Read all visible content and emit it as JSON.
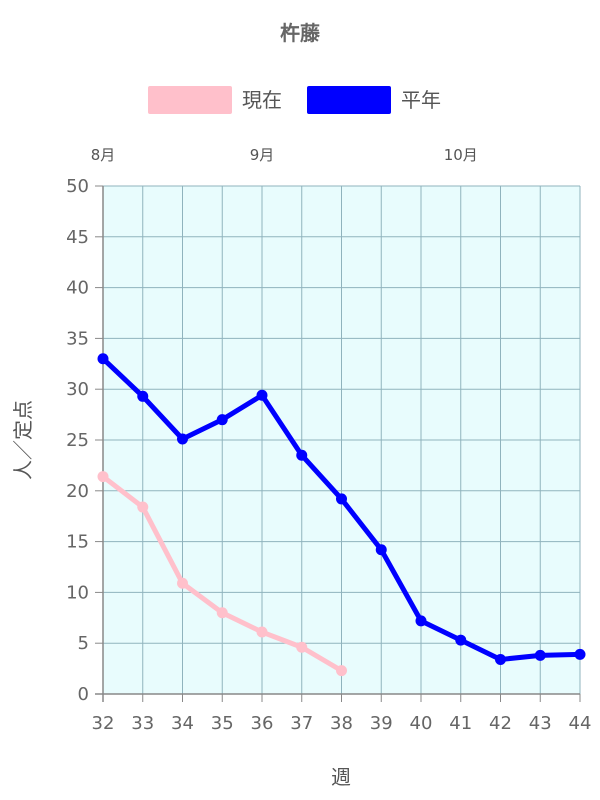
{
  "chart_data": {
    "type": "line",
    "title": "杵藤",
    "xlabel": "週",
    "ylabel": "人／定点",
    "x": [
      32,
      33,
      34,
      35,
      36,
      37,
      38,
      39,
      40,
      41,
      42,
      43,
      44
    ],
    "ylim": [
      0,
      50
    ],
    "yticks": [
      0,
      5,
      10,
      15,
      20,
      25,
      30,
      35,
      40,
      45,
      50
    ],
    "month_labels": [
      {
        "label": "8月",
        "week": 32
      },
      {
        "label": "9月",
        "week": 36
      },
      {
        "label": "10月",
        "week": 41
      }
    ],
    "grid": true,
    "legend_position": "top",
    "plot_background": "#e8fcfd",
    "series": [
      {
        "name": "現在",
        "color": "#ffc0cb",
        "x": [
          32,
          33,
          34,
          35,
          36,
          37,
          38
        ],
        "values": [
          21.4,
          18.4,
          10.9,
          8.0,
          6.1,
          4.6,
          2.3
        ]
      },
      {
        "name": "平年",
        "color": "#0000ff",
        "x": [
          32,
          33,
          34,
          35,
          36,
          37,
          38,
          39,
          40,
          41,
          42,
          43,
          44
        ],
        "values": [
          33.0,
          29.3,
          25.1,
          27.0,
          29.4,
          23.5,
          19.2,
          14.2,
          7.2,
          5.3,
          3.4,
          3.8,
          3.9
        ]
      }
    ]
  }
}
